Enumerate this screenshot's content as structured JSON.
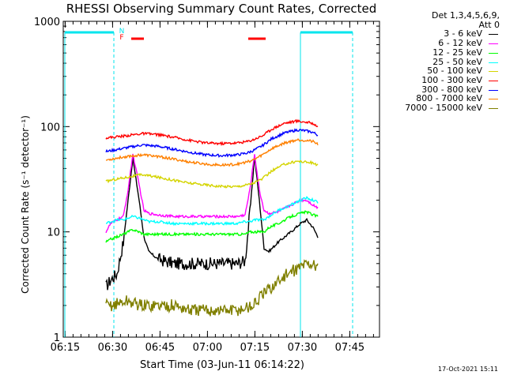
{
  "colors": {
    "axes": "#000000",
    "attenuator": "#00e5ee",
    "night_marker": "#ff0000"
  },
  "chart_data": {
    "type": "line",
    "title": "RHESSI Observing Summary Count Rates, Corrected",
    "xlabel": "Start Time (03-Jun-11 06:14:22)",
    "ylabel": "Corrected Count Rate (s⁻¹ detector⁻¹)",
    "y_scale": "log",
    "ylim": [
      1,
      1000
    ],
    "x_units": "minutes after 06:14:22",
    "xlim": [
      0,
      100
    ],
    "x_ticks": [
      "06:15",
      "06:30",
      "06:45",
      "07:00",
      "07:15",
      "07:30",
      "07:45"
    ],
    "x_tick_minutes": [
      0.6,
      15.6,
      30.6,
      45.6,
      60.6,
      75.6,
      90.6
    ],
    "y_ticks": [
      "1",
      "10",
      "100",
      "1000"
    ],
    "y_tick_values": [
      1,
      10,
      100,
      1000
    ],
    "legend_header": [
      "Det 1,3,4,5,6,9,",
      "Att 0"
    ],
    "flags": [
      {
        "label": "N",
        "color": "#00e5ee",
        "x": 18.5
      },
      {
        "label": "F",
        "color": "#ff0000",
        "x": 18.5
      }
    ],
    "flare_bars": [
      [
        21.5,
        25.5
      ],
      [
        58.5,
        64.0
      ]
    ],
    "attenuator_intervals": [
      [
        0,
        16.0
      ],
      [
        75.0,
        91.5
      ]
    ],
    "series": [
      {
        "name": "3 - 6 keV",
        "color": "#000000",
        "x": [
          13.5,
          15,
          17,
          19,
          20.5,
          22,
          24,
          25.5,
          27,
          30,
          35,
          40,
          45,
          50,
          55,
          57.5,
          59,
          60.5,
          62,
          63.5,
          65,
          68,
          72,
          75,
          77,
          79,
          80.5
        ],
        "y": [
          3,
          3.5,
          4,
          8,
          20,
          50,
          20,
          9,
          6.5,
          5.5,
          5,
          5,
          5,
          5,
          5,
          5.3,
          15,
          52,
          20,
          7,
          6.5,
          8,
          10,
          12,
          13,
          11,
          9
        ]
      },
      {
        "name": "6 - 12 keV",
        "color": "#ff00ff",
        "x": [
          13.5,
          15,
          17,
          19,
          20.5,
          22,
          24,
          25.5,
          27,
          30,
          35,
          40,
          45,
          50,
          55,
          57.5,
          59,
          60.5,
          62,
          63.5,
          65,
          68,
          72,
          75,
          77,
          79,
          80.5
        ],
        "y": [
          10,
          12,
          13,
          14,
          25,
          55,
          28,
          16,
          15,
          14.5,
          14,
          14,
          14,
          14,
          14,
          14.5,
          25,
          55,
          25,
          16,
          15,
          15.5,
          18,
          20,
          20,
          18,
          17
        ]
      },
      {
        "name": "12 - 25 keV",
        "color": "#00ff00",
        "x": [
          13.5,
          15,
          17,
          19,
          20.5,
          22,
          24,
          25.5,
          27,
          30,
          35,
          40,
          45,
          50,
          55,
          57.5,
          59,
          60.5,
          62,
          63.5,
          65,
          68,
          72,
          75,
          77,
          79,
          80.5
        ],
        "y": [
          8,
          8.5,
          9,
          9.5,
          10,
          10.5,
          10,
          9.5,
          9.5,
          9.5,
          9.5,
          9.5,
          9.5,
          9.5,
          9.5,
          9.5,
          10,
          10,
          10,
          10,
          11,
          12,
          14,
          15,
          15.5,
          14.5,
          14
        ]
      },
      {
        "name": "25 - 50 keV",
        "color": "#00ffff",
        "x": [
          13.5,
          15,
          17,
          19,
          20.5,
          22,
          24,
          25.5,
          27,
          30,
          35,
          40,
          45,
          50,
          55,
          57.5,
          59,
          60.5,
          62,
          63.5,
          65,
          68,
          72,
          75,
          77,
          79,
          80.5
        ],
        "y": [
          12,
          12.5,
          13,
          13,
          13.5,
          14,
          13.5,
          13,
          12.5,
          12.5,
          12,
          12,
          12,
          12,
          12,
          12.5,
          12.5,
          13,
          13,
          13,
          14,
          16,
          18,
          20,
          21,
          20,
          19
        ]
      },
      {
        "name": "50 - 100 keV",
        "color": "#d4d400",
        "x": [
          13.5,
          15,
          20,
          25,
          30,
          35,
          40,
          45,
          50,
          55,
          58,
          60,
          63,
          66,
          70,
          74,
          77,
          79,
          80.5
        ],
        "y": [
          30,
          31,
          33,
          35,
          33,
          31,
          29,
          28,
          27,
          27,
          28,
          29,
          32,
          38,
          44,
          47,
          46,
          45,
          43
        ]
      },
      {
        "name": "100 - 300 keV",
        "color": "#ff0000",
        "x": [
          13.5,
          15,
          20,
          25,
          30,
          35,
          40,
          45,
          50,
          55,
          58,
          60,
          63,
          66,
          70,
          74,
          77,
          79,
          80.5
        ],
        "y": [
          78,
          79,
          82,
          86,
          84,
          79,
          74,
          70,
          69,
          70,
          72,
          75,
          82,
          95,
          108,
          113,
          110,
          107,
          100
        ]
      },
      {
        "name": "300 - 800 keV",
        "color": "#0000ff",
        "x": [
          13.5,
          15,
          20,
          25,
          30,
          35,
          40,
          45,
          50,
          55,
          58,
          60,
          63,
          66,
          70,
          74,
          77,
          79,
          80.5
        ],
        "y": [
          58,
          59,
          63,
          67,
          65,
          61,
          57,
          54,
          53,
          54,
          56,
          59,
          66,
          77,
          87,
          93,
          91,
          88,
          83
        ]
      },
      {
        "name": "800 - 7000 keV",
        "color": "#ff8000",
        "x": [
          13.5,
          15,
          20,
          25,
          30,
          35,
          40,
          45,
          50,
          55,
          58,
          60,
          63,
          66,
          70,
          74,
          77,
          79,
          80.5
        ],
        "y": [
          48,
          49,
          52,
          54,
          52,
          49,
          46,
          44,
          43,
          44,
          46,
          48,
          54,
          62,
          70,
          75,
          74,
          72,
          68
        ]
      },
      {
        "name": "7000 - 15000 keV",
        "color": "#808000",
        "x": [
          13.5,
          15,
          20,
          25,
          30,
          35,
          40,
          45,
          50,
          55,
          58,
          60,
          63,
          66,
          70,
          74,
          77,
          79,
          80.5
        ],
        "y": [
          2,
          2,
          2.2,
          2,
          2,
          2,
          1.8,
          1.8,
          1.8,
          1.8,
          1.9,
          2,
          2.5,
          3,
          3.8,
          4.5,
          5,
          5,
          4.5
        ]
      }
    ]
  },
  "footer": {
    "timestamp": "17-Oct-2021 15:11"
  }
}
